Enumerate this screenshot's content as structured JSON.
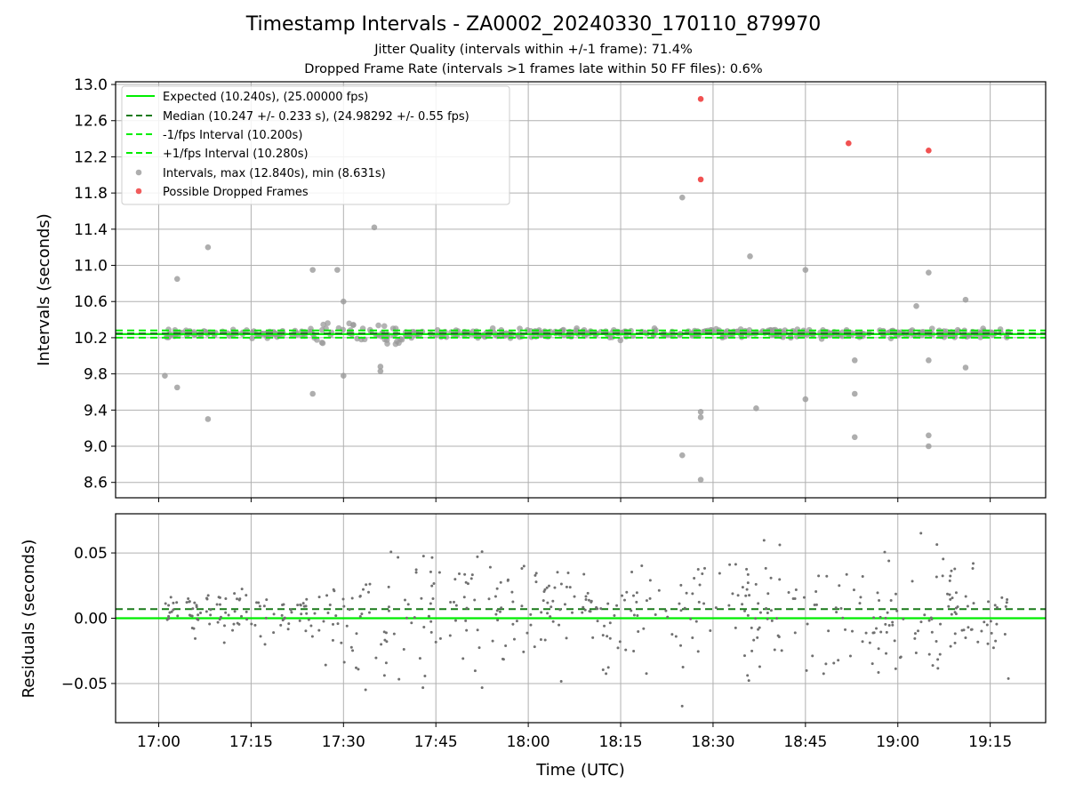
{
  "title": "Timestamp Intervals - ZA0002_20240330_170110_879970",
  "subtitle_jitter": "Jitter Quality (intervals within +/-1 frame): 71.4%",
  "subtitle_dropped": "Dropped Frame Rate (intervals >1 frames late within 50 FF files): 0.6%",
  "colors": {
    "expected": "#00ee00",
    "median": "#1a7a1a",
    "interval_points": "#9a9a9a",
    "dropped_points": "#ee3333",
    "residual_points": "#707070",
    "grid": "#b0b0b0"
  },
  "chart_data": [
    {
      "type": "scatter",
      "panel": "top",
      "xlabel": "",
      "ylabel": "Intervals (seconds)",
      "x_range": [
        "16:53",
        "19:24"
      ],
      "ylim": [
        8.43,
        13.03
      ],
      "yticks": [
        "8.6",
        "9.0",
        "9.4",
        "9.8",
        "10.2",
        "10.6",
        "11.0",
        "11.4",
        "11.8",
        "12.2",
        "12.6",
        "13.0"
      ],
      "grid": true,
      "legend_position": "top-left",
      "reference_lines": [
        {
          "label": "Expected (10.240s), (25.00000 fps)",
          "y": 10.24,
          "style": "solid"
        },
        {
          "label": "Median (10.247 +/- 0.233 s), (24.98292 +/- 0.55 fps)",
          "y": 10.247,
          "style": "dashed"
        },
        {
          "label": "-1/fps Interval (10.200s)",
          "y": 10.2,
          "style": "dashed"
        },
        {
          "label": "+1/fps Interval (10.280s)",
          "y": 10.28,
          "style": "dashed"
        }
      ],
      "series": [
        {
          "name": "Intervals, max (12.840s), min (8.631s)",
          "note": "approx. 500 points clustered in 10.1–10.4 s band; notable outliers listed",
          "outliers": [
            [
              "17:01",
              9.78
            ],
            [
              "17:03",
              10.85
            ],
            [
              "17:03",
              9.65
            ],
            [
              "17:08",
              11.2
            ],
            [
              "17:08",
              9.3
            ],
            [
              "17:25",
              10.95
            ],
            [
              "17:25",
              9.58
            ],
            [
              "17:29",
              10.95
            ],
            [
              "17:30",
              10.6
            ],
            [
              "17:30",
              9.78
            ],
            [
              "17:35",
              11.42
            ],
            [
              "17:36",
              9.88
            ],
            [
              "17:36",
              9.83
            ],
            [
              "18:25",
              11.75
            ],
            [
              "18:25",
              8.9
            ],
            [
              "18:28",
              9.38
            ],
            [
              "18:28",
              9.32
            ],
            [
              "18:28",
              8.63
            ],
            [
              "18:36",
              11.1
            ],
            [
              "18:37",
              9.42
            ],
            [
              "18:45",
              10.95
            ],
            [
              "18:45",
              9.52
            ],
            [
              "18:53",
              9.95
            ],
            [
              "18:53",
              9.58
            ],
            [
              "18:53",
              9.1
            ],
            [
              "19:05",
              10.92
            ],
            [
              "19:05",
              9.95
            ],
            [
              "19:05",
              9.12
            ],
            [
              "19:05",
              9.0
            ],
            [
              "19:03",
              10.55
            ],
            [
              "19:11",
              10.62
            ],
            [
              "19:11",
              9.87
            ]
          ]
        },
        {
          "name": "Possible Dropped Frames",
          "points": [
            [
              "18:28",
              12.84
            ],
            [
              "18:28",
              11.95
            ],
            [
              "18:52",
              12.35
            ],
            [
              "19:05",
              12.27
            ]
          ]
        }
      ]
    },
    {
      "type": "scatter",
      "panel": "bottom",
      "xlabel": "Time (UTC)",
      "ylabel": "Residuals (seconds)",
      "x_range": [
        "16:53",
        "19:24"
      ],
      "xticks": [
        "17:00",
        "17:15",
        "17:30",
        "17:45",
        "18:00",
        "18:15",
        "18:30",
        "18:45",
        "19:00",
        "19:15"
      ],
      "ylim": [
        -0.08,
        0.08
      ],
      "yticks": [
        "−0.05",
        "0.00",
        "0.05"
      ],
      "ytick_values": [
        -0.05,
        0,
        0.05
      ],
      "grid": true,
      "reference_lines": [
        {
          "y": 0.0,
          "style": "solid"
        },
        {
          "y": 0.007,
          "style": "dashed"
        }
      ],
      "series": [
        {
          "note": "approx. 500 residual points spanning -0.08 to 0.08 s; tighter (±0.03) before 17:27, wider after"
        }
      ]
    }
  ]
}
